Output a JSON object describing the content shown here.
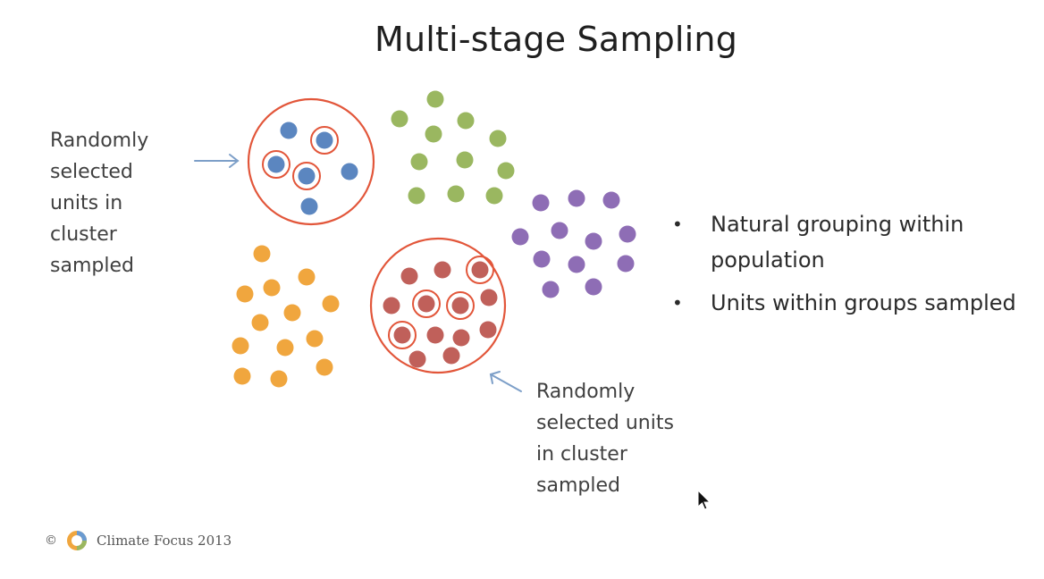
{
  "slide": {
    "title": "Multi-stage Sampling",
    "left_caption": "Randomly\nselected\nunits in\ncluster\nsampled",
    "right_caption": "Randomly\nselected units\nin cluster\nsampled",
    "bullets": [
      "Natural grouping within population",
      "Units within groups sampled"
    ],
    "bullet_symbol": "•",
    "footer": {
      "copyright_symbol": "©",
      "text": "Climate Focus 2013"
    }
  },
  "colors": {
    "blue": "#5b86c0",
    "green": "#9ab760",
    "purple": "#8e6db5",
    "orange": "#f0a63e",
    "red": "#c0605a",
    "cluster_ring": "#e2563a",
    "arrow": "#7d9fc8"
  },
  "icons": [
    "climate-focus-logo-icon",
    "arrow-right-icon",
    "arrow-up-left-icon",
    "mouse-cursor-icon"
  ]
}
